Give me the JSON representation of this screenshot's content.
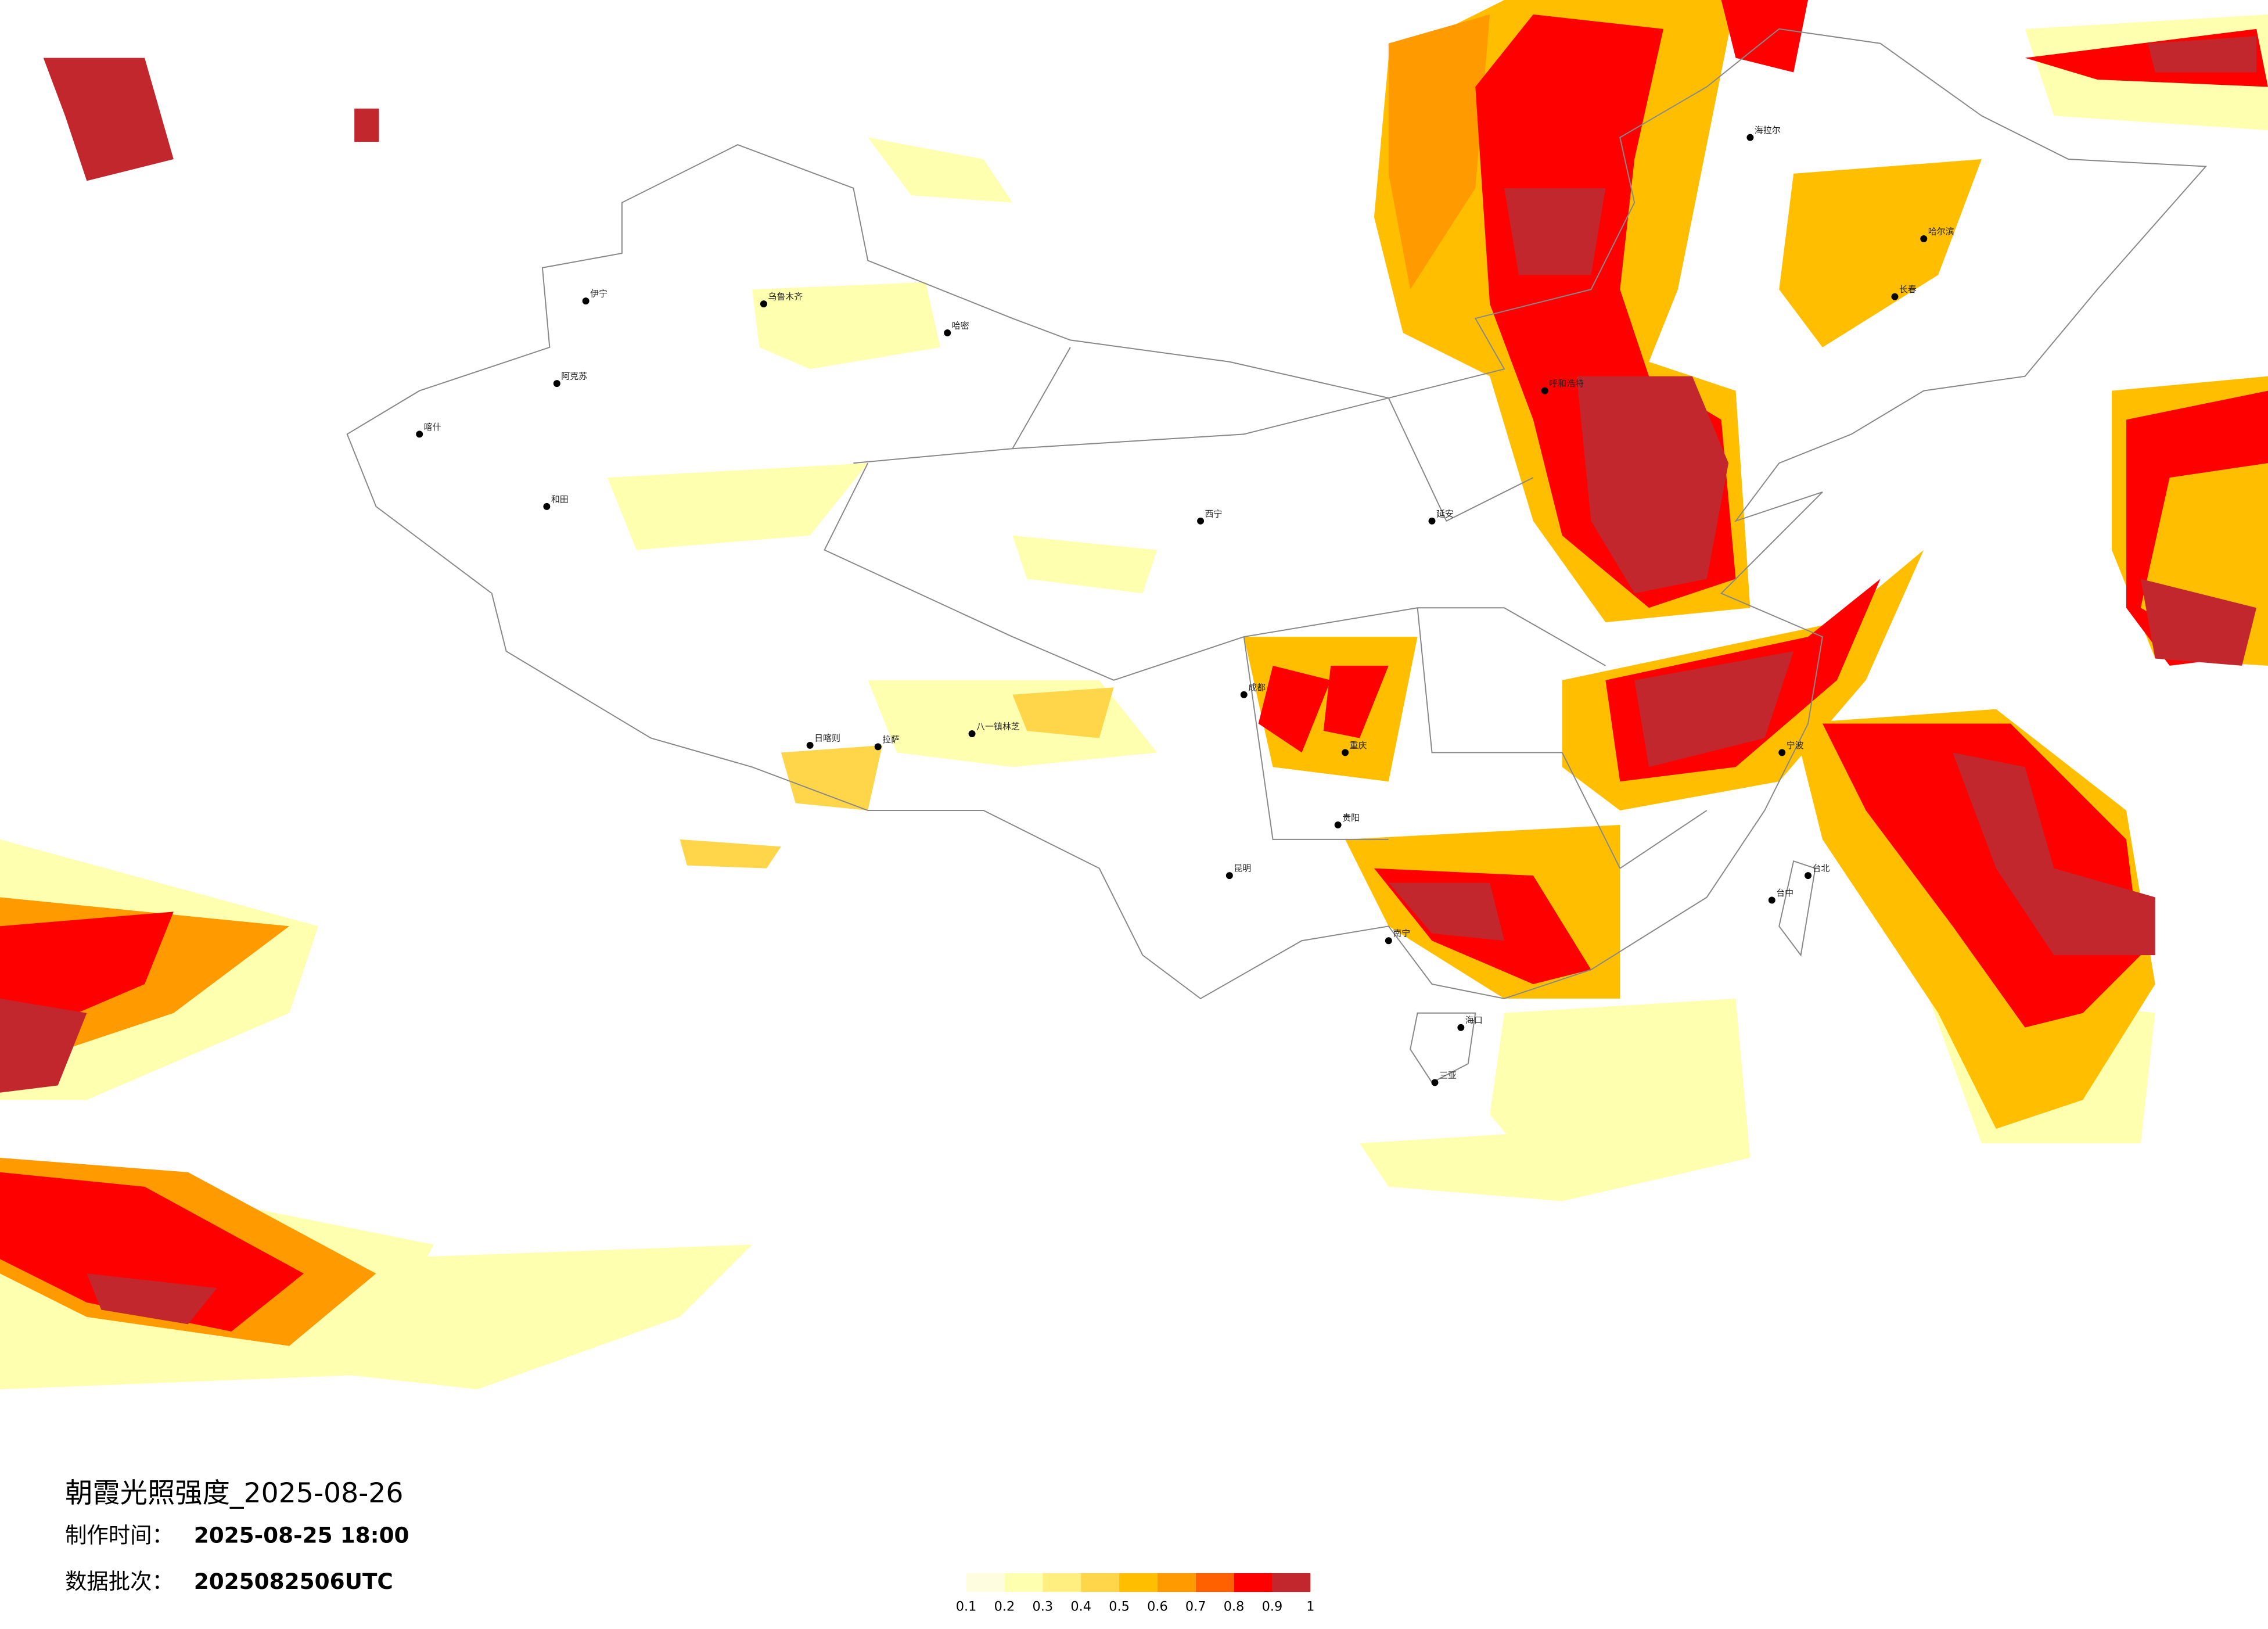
{
  "map": {
    "title": "朝霞光照强度_2025-08-26",
    "made_time": {
      "label": "制作时间：",
      "value": "2025-08-25 18:00"
    },
    "batch": {
      "label": "数据批次：",
      "value": "2025082506UTC"
    },
    "legend": {
      "ticks": [
        0.1,
        0.2,
        0.3,
        0.4,
        0.5,
        0.6,
        0.7,
        0.8,
        0.9,
        1
      ],
      "colors": [
        "#fffde0",
        "#ffffb0",
        "#ffef80",
        "#ffd54a",
        "#ffbf00",
        "#ff9a00",
        "#ff6000",
        "#ff0000",
        "#c1272d"
      ]
    },
    "cities": [
      {
        "name": "伊宁"
      },
      {
        "name": "喀什"
      },
      {
        "name": "阿克苏"
      },
      {
        "name": "和田"
      },
      {
        "name": "乌鲁木齐"
      },
      {
        "name": "哈密"
      },
      {
        "name": "拉萨"
      },
      {
        "name": "日喀则"
      },
      {
        "name": "八一镇林芝"
      },
      {
        "name": "西宁"
      },
      {
        "name": "成都"
      },
      {
        "name": "重庆"
      },
      {
        "name": "昆明"
      },
      {
        "name": "贵阳"
      },
      {
        "name": "南宁"
      },
      {
        "name": "海口"
      },
      {
        "name": "三亚"
      },
      {
        "name": "台北"
      },
      {
        "name": "台中"
      },
      {
        "name": "延安"
      },
      {
        "name": "呼和浩特"
      },
      {
        "name": "哈尔滨"
      },
      {
        "name": "长春"
      },
      {
        "name": "海拉尔"
      },
      {
        "name": "宁波"
      }
    ]
  }
}
